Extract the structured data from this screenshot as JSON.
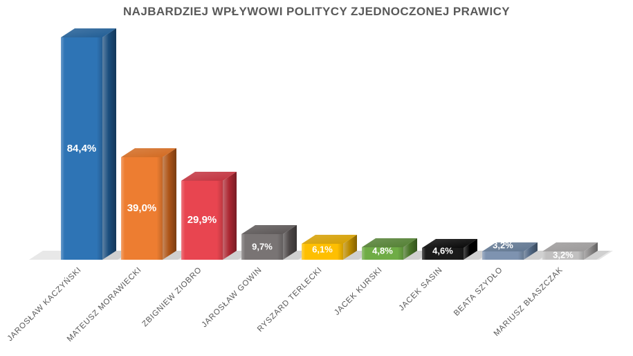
{
  "title": {
    "text": "NAJBARDZIEJ WPŁYWOWI POLITYCY ZJEDNOCZONEJ PRAWICY",
    "color": "#595959"
  },
  "chart_data": {
    "type": "bar",
    "style": "3d-column",
    "orientation": "vertical",
    "axes_visible": false,
    "gridlines": false,
    "legend": "none",
    "ylim": [
      0,
      90
    ],
    "value_format": "percent, comma decimal",
    "categories": [
      "JAROSŁAW KACZYŃSKI",
      "MATEUSZ MORAWIECKI",
      "ZBIGNIEW ZIOBRO",
      "JAROSŁAW GOWIN",
      "RYSZARD TERLECKI",
      "JACEK KURSKI",
      "JACEK SASIN",
      "BEATA SZYDŁO",
      "MARIUSZ BŁASZCZAK"
    ],
    "values": [
      84.4,
      39.0,
      29.9,
      9.7,
      6.1,
      4.8,
      4.6,
      3.2,
      3.2
    ],
    "value_labels": [
      "84,4%",
      "39,0%",
      "29,9%",
      "9,7%",
      "6,1%",
      "4,8%",
      "4,6%",
      "3,2%",
      "3,2%"
    ],
    "bar_colors": [
      {
        "front": "#2E74B5",
        "top": "#1F5C94",
        "side": "#1B4E7E"
      },
      {
        "front": "#ED7D31",
        "top": "#D2691F",
        "side": "#AE5518"
      },
      {
        "front": "#E84550",
        "top": "#C2323E",
        "side": "#AC2833"
      },
      {
        "front": "#797474",
        "top": "#5A5555",
        "side": "#4E4949"
      },
      {
        "front": "#FEBF01",
        "top": "#D59F00",
        "side": "#BC8B00"
      },
      {
        "front": "#6FAC46",
        "top": "#527F32",
        "side": "#497529"
      },
      {
        "front": "#1B1B1B",
        "top": "#060606",
        "side": "#000000"
      },
      {
        "front": "#7E93B0",
        "top": "#5F7590",
        "side": "#536985"
      },
      {
        "front": "#C1C0C0",
        "top": "#9B9999",
        "side": "#8C8A8A"
      }
    ],
    "value_label_color": "#FFFFFF",
    "category_label_color": "#595959",
    "floor_color": "#E8E8E8",
    "background_color": "#FFFFFF"
  }
}
